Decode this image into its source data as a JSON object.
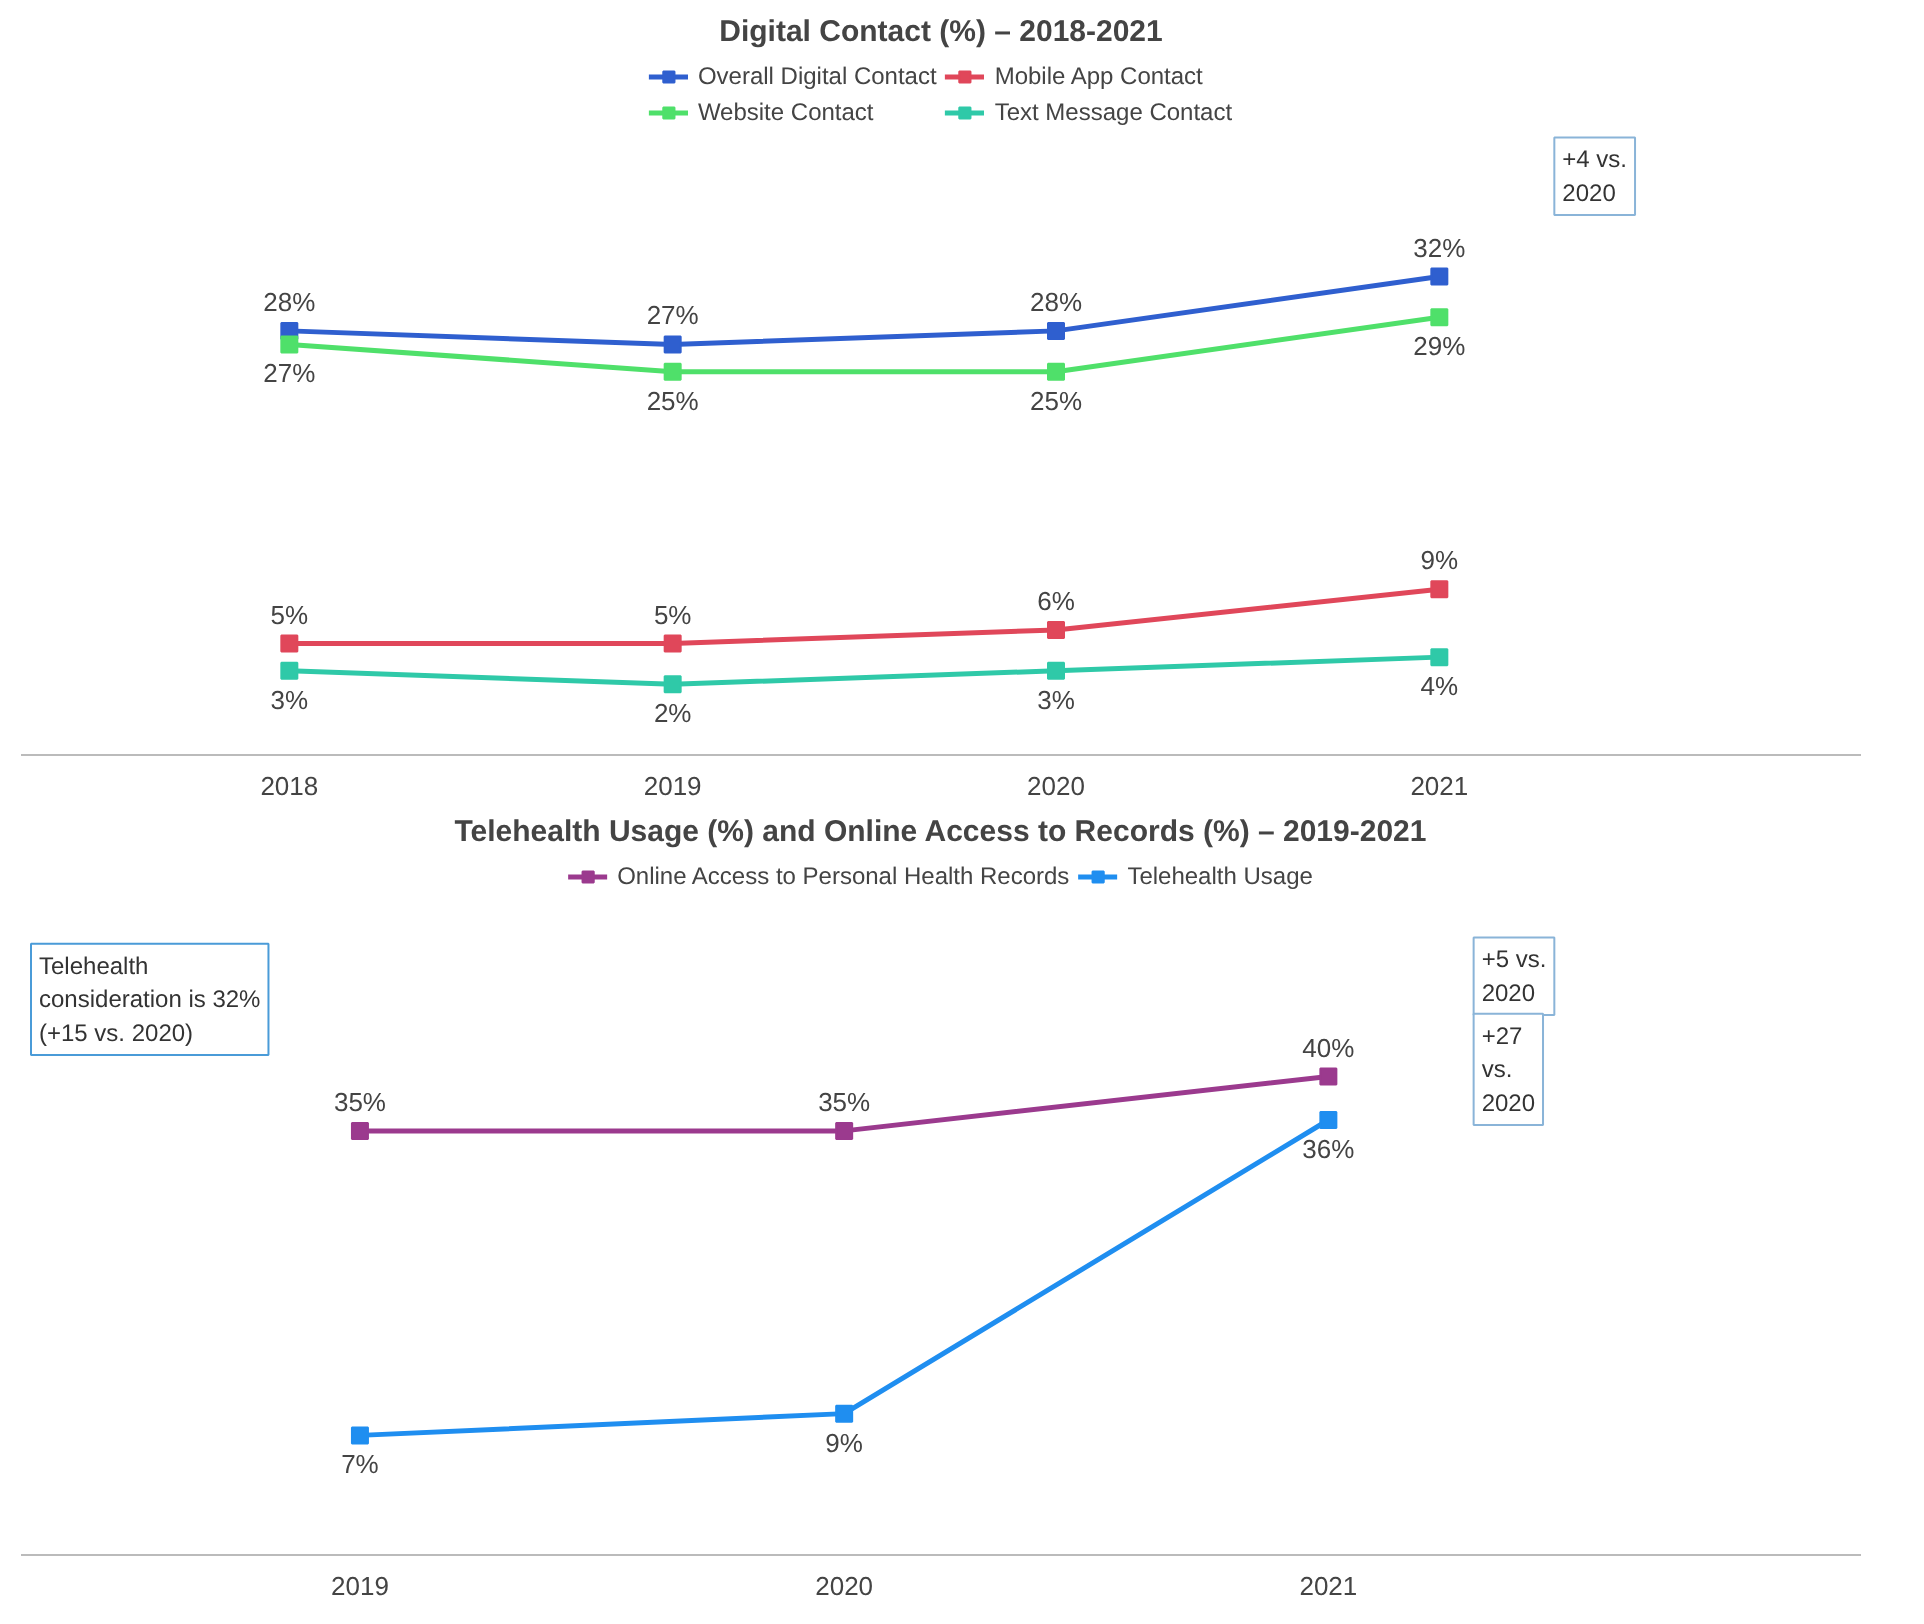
{
  "chart_data": [
    {
      "type": "line",
      "title": "Digital Contact (%) – 2018-2021",
      "categories": [
        "2018",
        "2019",
        "2020",
        "2021"
      ],
      "series": [
        {
          "name": "Overall Digital Contact",
          "color": "#2f5fcf",
          "values": [
            28,
            27,
            28,
            32
          ],
          "value_labels": [
            "28%",
            "27%",
            "28%",
            "32%"
          ]
        },
        {
          "name": "Website Contact",
          "color": "#4fe06a",
          "values": [
            27,
            25,
            25,
            29
          ],
          "value_labels": [
            "27%",
            "25%",
            "25%",
            "29%"
          ]
        },
        {
          "name": "Mobile App Contact",
          "color": "#e0475a",
          "values": [
            5,
            5,
            6,
            9
          ],
          "value_labels": [
            "5%",
            "5%",
            "6%",
            "9%"
          ]
        },
        {
          "name": "Text Message Contact",
          "color": "#2fc9a8",
          "values": [
            3,
            2,
            3,
            4
          ],
          "value_labels": [
            "3%",
            "2%",
            "3%",
            "4%"
          ]
        }
      ],
      "marker": "square",
      "legend": "top",
      "annotations": [
        "+4 vs. 2020"
      ]
    },
    {
      "type": "line",
      "title": "Telehealth Usage (%) and Online Access to Records (%) – 2019-2021",
      "categories": [
        "2019",
        "2020",
        "2021"
      ],
      "series": [
        {
          "name": "Online Access to Personal Health Records",
          "color": "#9b3a8e",
          "values": [
            35,
            35,
            40
          ],
          "value_labels": [
            "35%",
            "35%",
            "40%"
          ]
        },
        {
          "name": "Telehealth Usage",
          "color": "#1f8ef0",
          "values": [
            7,
            9,
            36
          ],
          "value_labels": [
            "7%",
            "9%",
            "36%"
          ]
        }
      ],
      "marker": "square",
      "legend": "top",
      "annotations": [
        "Telehealth consideration is 32% (+15 vs. 2020)",
        "+5 vs. 2020",
        "+27 vs. 2020"
      ]
    }
  ]
}
